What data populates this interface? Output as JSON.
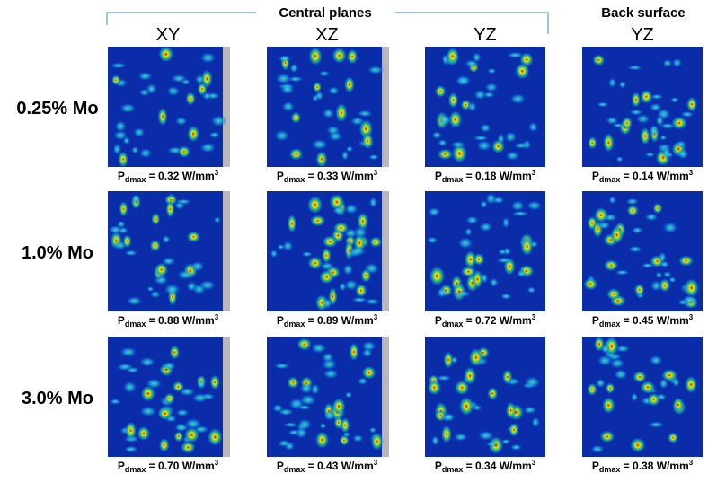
{
  "header": {
    "group_title": "Central planes",
    "back_title": "Back surface"
  },
  "columns": [
    "XY",
    "XZ",
    "YZ",
    "YZ"
  ],
  "rows": [
    {
      "label": "0.25% Mo",
      "captions": [
        {
          "symbol": "P",
          "sub": "dmax",
          "text": " = 0.32 W/mm",
          "sup": "3"
        },
        {
          "symbol": "P",
          "sub": "dmax",
          "text": " = 0.33 W/mm",
          "sup": "3"
        },
        {
          "symbol": "P",
          "sub": "dmax",
          "text": " = 0.18 W/mm",
          "sup": "3"
        },
        {
          "symbol": "P",
          "sub": "dmax",
          "text": " = 0.14 W/mm",
          "sup": "3"
        }
      ]
    },
    {
      "label": "1.0% Mo",
      "captions": [
        {
          "symbol": "P",
          "sub": "dmax",
          "text": " = 0.88 W/mm",
          "sup": "3"
        },
        {
          "symbol": "P",
          "sub": "dmax",
          "text": " = 0.89 W/mm",
          "sup": "3"
        },
        {
          "symbol": "P",
          "sub": "dmax",
          "text": " = 0.72 W/mm",
          "sup": "3"
        },
        {
          "symbol": "P",
          "sub": "dmax",
          "text": " = 0.45 W/mm",
          "sup": "3"
        }
      ]
    },
    {
      "label": "3.0% Mo",
      "captions": [
        {
          "symbol": "P",
          "sub": "dmax",
          "text": " = 0.70 W/mm",
          "sup": "3"
        },
        {
          "symbol": "P",
          "sub": "dmax",
          "text": " = 0.43 W/mm",
          "sup": "3"
        },
        {
          "symbol": "P",
          "sub": "dmax",
          "text": " = 0.34 W/mm",
          "sup": "3"
        },
        {
          "symbol": "P",
          "sub": "dmax",
          "text": " = 0.38 W/mm",
          "sup": "3"
        }
      ]
    }
  ]
}
